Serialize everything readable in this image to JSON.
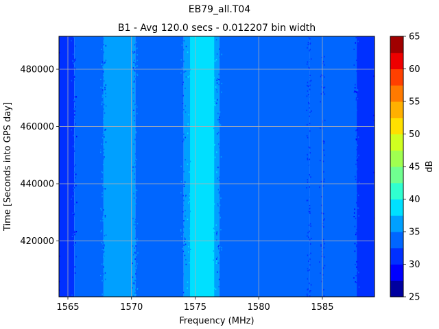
{
  "chart_data": {
    "type": "heatmap",
    "suptitle": "EB79_all.T04",
    "title": "B1 - Avg 120.0 secs - 0.012207 bin width",
    "xlabel": "Frequency (MHz)",
    "ylabel": "Time [Seconds into GPS day]",
    "colorbar_label": "dB",
    "xlim": [
      1564.3,
      1589.1
    ],
    "ylim": [
      400500,
      491500
    ],
    "x_ticks": [
      1565,
      1570,
      1575,
      1580,
      1585
    ],
    "x_tick_labels": [
      "1565",
      "1570",
      "1575",
      "1580",
      "1585"
    ],
    "y_ticks": [
      420000,
      440000,
      460000,
      480000
    ],
    "y_tick_labels": [
      "420000",
      "440000",
      "460000",
      "480000"
    ],
    "grid": true,
    "colormap": "jet",
    "color_levels": [
      25,
      27.5,
      30,
      32.5,
      35,
      37.5,
      40,
      42.5,
      45,
      47.5,
      50,
      52.5,
      55,
      57.5,
      60,
      62.5,
      65
    ],
    "colorbar_ticks": [
      25,
      30,
      35,
      40,
      45,
      50,
      55,
      60,
      65
    ],
    "colorbar_tick_labels": [
      "25",
      "30",
      "35",
      "40",
      "45",
      "50",
      "55",
      "60",
      "65"
    ],
    "level_colors": [
      "#00009f",
      "#0000ff",
      "#0030ff",
      "#0066ff",
      "#00a0ff",
      "#00e0ff",
      "#30ffd0",
      "#70ff90",
      "#a0ff50",
      "#d0ff20",
      "#ffe000",
      "#ffb000",
      "#ff7a00",
      "#ff4000",
      "#ee0000",
      "#a00000"
    ],
    "bands": [
      {
        "x": [
          1564.3,
          1565.5
        ],
        "level_db": 31
      },
      {
        "x": [
          1565.5,
          1567.8
        ],
        "level_db": 33.5
      },
      {
        "x": [
          1567.8,
          1570.3
        ],
        "level_db": 36,
        "speckle": true
      },
      {
        "x": [
          1570.3,
          1574.1
        ],
        "level_db": 33.5
      },
      {
        "x": [
          1574.1,
          1576.9
        ],
        "level_db": 36
      },
      {
        "x": [
          1574.6,
          1576.5
        ],
        "level_db": 38.5
      },
      {
        "x": [
          1576.9,
          1584.0
        ],
        "level_db": 33.5
      },
      {
        "x": [
          1584.0,
          1585.0
        ],
        "level_db": 34.5,
        "speckle": true
      },
      {
        "x": [
          1585.0,
          1587.7
        ],
        "level_db": 33.5
      },
      {
        "x": [
          1587.7,
          1589.1
        ],
        "level_db": 31
      }
    ]
  }
}
